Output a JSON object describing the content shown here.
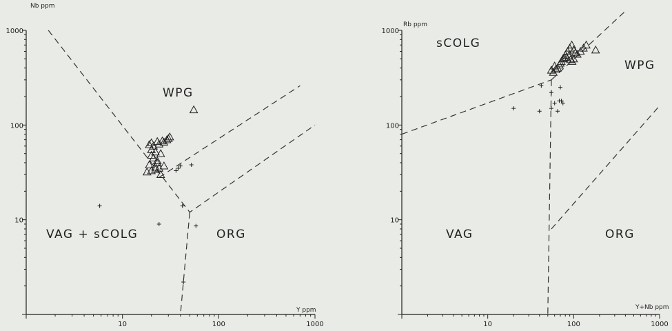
{
  "chart_data": [
    {
      "type": "scatter",
      "scale": "log-log",
      "xlabel": "Y ppm",
      "ylabel": "Nb ppm",
      "xlim": [
        1,
        1000
      ],
      "ylim": [
        1,
        1000
      ],
      "x_ticks": [
        "10",
        "100",
        "1000"
      ],
      "y_ticks": [
        "10",
        "100",
        "1000"
      ],
      "fields": [
        "WPG",
        "VAG + sCOLG",
        "ORG"
      ],
      "boundaries": [
        [
          [
            1.7,
            1000
          ],
          [
            50,
            12
          ],
          [
            1000,
            100
          ]
        ],
        [
          [
            24,
            28
          ],
          [
            700,
            260
          ]
        ],
        [
          [
            50,
            12
          ],
          [
            40,
            1
          ]
        ]
      ],
      "series": [
        {
          "marker": "triangle",
          "x": [
            20,
            23,
            26,
            29,
            31,
            19,
            21,
            24,
            27,
            30,
            20,
            22,
            25,
            21,
            23,
            19,
            22,
            24,
            18,
            20,
            22,
            25,
            20,
            23,
            27,
            55
          ],
          "y": [
            65,
            67,
            68,
            70,
            75,
            62,
            60,
            63,
            66,
            72,
            55,
            52,
            50,
            45,
            42,
            38,
            36,
            35,
            32,
            33,
            34,
            30,
            48,
            40,
            37,
            145
          ]
        },
        {
          "marker": "plus",
          "x": [
            5.8,
            24,
            36,
            38,
            40,
            52,
            58,
            42,
            43
          ],
          "y": [
            14,
            9,
            33,
            35,
            37,
            38,
            8.6,
            14,
            2.2
          ]
        }
      ]
    },
    {
      "type": "scatter",
      "scale": "log-log",
      "xlabel": "Y+Nb ppm",
      "ylabel": "Rb ppm",
      "xlim": [
        1,
        1000
      ],
      "ylim": [
        1,
        1000
      ],
      "x_ticks": [
        "10",
        "100",
        "1000"
      ],
      "y_ticks": [
        "10",
        "100",
        "1000"
      ],
      "fields": [
        "sCOLG",
        "WPG",
        "VAG",
        "ORG"
      ],
      "boundaries": [
        [
          [
            1,
            80
          ],
          [
            55,
            300
          ]
        ],
        [
          [
            55,
            300
          ],
          [
            400,
            1600
          ]
        ],
        [
          [
            55,
            300
          ],
          [
            50,
            1
          ]
        ],
        [
          [
            55,
            8
          ],
          [
            1000,
            160
          ]
        ]
      ],
      "series": [
        {
          "marker": "triangle",
          "x": [
            55,
            60,
            65,
            70,
            75,
            80,
            85,
            90,
            95,
            100,
            105,
            110,
            120,
            130,
            140,
            180,
            58,
            62,
            68,
            72,
            78,
            82,
            88,
            92,
            96,
            100
          ],
          "y": [
            380,
            420,
            400,
            450,
            500,
            550,
            600,
            650,
            700,
            620,
            580,
            560,
            600,
            650,
            700,
            620,
            360,
            390,
            430,
            470,
            510,
            520,
            540,
            490,
            470,
            500
          ]
        },
        {
          "marker": "plus",
          "x": [
            20,
            40,
            42,
            55,
            55,
            60,
            65,
            68,
            70,
            72,
            75
          ],
          "y": [
            150,
            140,
            260,
            220,
            150,
            170,
            140,
            180,
            250,
            180,
            170
          ]
        }
      ]
    }
  ]
}
